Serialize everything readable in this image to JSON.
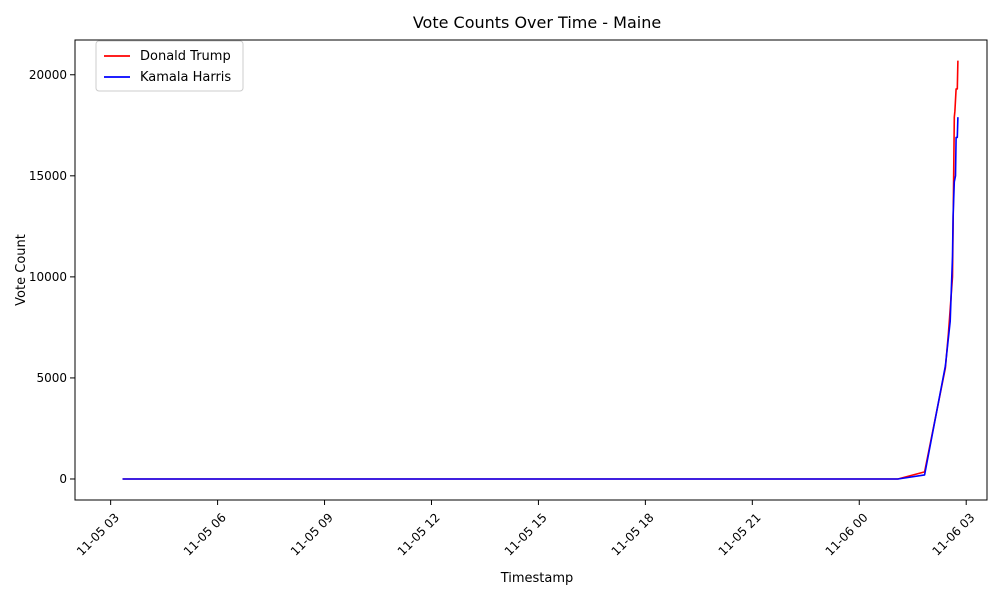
{
  "chart_data": {
    "type": "line",
    "title": "Vote Counts Over Time - Maine",
    "xlabel": "Timestamp",
    "ylabel": "Vote Count",
    "x_ticks": [
      "11-05 03",
      "11-05 06",
      "11-05 09",
      "11-05 12",
      "11-05 15",
      "11-05 18",
      "11-05 21",
      "11-06 00",
      "11-06 03"
    ],
    "y_ticks": [
      "0",
      "5000",
      "10000",
      "15000",
      "20000"
    ],
    "xlim": [
      "2024-11-05 02:00",
      "2024-11-06 03:35"
    ],
    "ylim": [
      -1040,
      21720
    ],
    "grid": false,
    "legend_position": "upper-left",
    "series": [
      {
        "name": "Donald Trump",
        "color": "#ff0000",
        "points": [
          [
            "2024-11-05 03:20",
            0
          ],
          [
            "2024-11-06 01:05",
            0
          ],
          [
            "2024-11-06 01:50",
            350
          ],
          [
            "2024-11-06 02:25",
            5500
          ],
          [
            "2024-11-06 02:30",
            7200
          ],
          [
            "2024-11-06 02:32",
            8000
          ],
          [
            "2024-11-06 02:37",
            10000
          ],
          [
            "2024-11-06 02:38",
            12500
          ],
          [
            "2024-11-06 02:40",
            17900
          ],
          [
            "2024-11-06 02:41",
            18200
          ],
          [
            "2024-11-06 02:43",
            19300
          ],
          [
            "2024-11-06 02:45",
            19300
          ],
          [
            "2024-11-06 02:46",
            20700
          ]
        ]
      },
      {
        "name": "Kamala Harris",
        "color": "#0000ff",
        "points": [
          [
            "2024-11-05 03:20",
            0
          ],
          [
            "2024-11-06 01:05",
            0
          ],
          [
            "2024-11-06 01:50",
            200
          ],
          [
            "2024-11-06 02:25",
            5600
          ],
          [
            "2024-11-06 02:33",
            7800
          ],
          [
            "2024-11-06 02:37",
            11000
          ],
          [
            "2024-11-06 02:38",
            13000
          ],
          [
            "2024-11-06 02:40",
            14700
          ],
          [
            "2024-11-06 02:42",
            15000
          ],
          [
            "2024-11-06 02:43",
            16900
          ],
          [
            "2024-11-06 02:45",
            16900
          ],
          [
            "2024-11-06 02:46",
            17900
          ]
        ]
      }
    ]
  }
}
